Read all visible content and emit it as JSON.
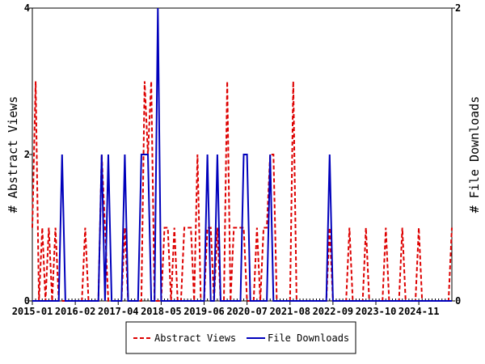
{
  "chart_data": {
    "type": "line",
    "x_start": "2015-01",
    "x_frequency": "monthly",
    "x_tick_labels": [
      "2015-01",
      "2016-02",
      "2017-04",
      "2018-05",
      "2019-06",
      "2020-07",
      "2021-08",
      "2022-09",
      "2023-10",
      "2024-11"
    ],
    "y_left": {
      "label": "# Abstract Views",
      "range": [
        0,
        4
      ],
      "ticks": [
        "0",
        "2",
        "4"
      ]
    },
    "y_right": {
      "label": "# File Downloads",
      "range": [
        0,
        2
      ],
      "ticks": [
        "0",
        "2"
      ]
    },
    "grid": false,
    "legend_position": "bottom",
    "series": [
      {
        "name": "Abstract Views",
        "axis": "left",
        "color": "#dd0000",
        "style": "dashed",
        "values": [
          1,
          3,
          0,
          1,
          0,
          1,
          0,
          1,
          0,
          0,
          0,
          0,
          0,
          0,
          0,
          0,
          1,
          0,
          0,
          0,
          0,
          2,
          1,
          0,
          0,
          0,
          0,
          0,
          1,
          0,
          0,
          0,
          0,
          0,
          3,
          2,
          3,
          0,
          0,
          0,
          1,
          1,
          0,
          1,
          0,
          0,
          1,
          1,
          1,
          0,
          2,
          0,
          0,
          1,
          1,
          0,
          1,
          0,
          0,
          3,
          0,
          1,
          1,
          1,
          1,
          0,
          0,
          0,
          1,
          0,
          1,
          1,
          2,
          2,
          0,
          0,
          0,
          0,
          0,
          3,
          0,
          0,
          0,
          0,
          0,
          0,
          0,
          0,
          0,
          0,
          1,
          0,
          0,
          0,
          0,
          0,
          1,
          0,
          0,
          0,
          0,
          1,
          0,
          0,
          0,
          0,
          0,
          1,
          0,
          0,
          0,
          0,
          1,
          0,
          0,
          0,
          0,
          1,
          0,
          0,
          0,
          0,
          0,
          0,
          0,
          0,
          0,
          1
        ]
      },
      {
        "name": "File Downloads",
        "axis": "right",
        "color": "#0000bb",
        "style": "solid",
        "values": [
          0,
          0,
          0,
          0,
          0,
          0,
          0,
          0,
          0,
          1,
          0,
          0,
          0,
          0,
          0,
          0,
          0,
          0,
          0,
          0,
          0,
          1,
          0,
          1,
          0,
          0,
          0,
          0,
          1,
          0,
          0,
          0,
          0,
          1,
          1,
          1,
          0,
          0,
          2,
          0,
          0,
          0,
          0,
          0,
          0,
          0,
          0,
          0,
          0,
          0,
          0,
          0,
          0,
          1,
          0,
          0,
          1,
          0,
          0,
          0,
          0,
          0,
          0,
          0,
          1,
          1,
          0,
          0,
          0,
          0,
          0,
          0,
          1,
          0,
          0,
          0,
          0,
          0,
          0,
          0,
          0,
          0,
          0,
          0,
          0,
          0,
          0,
          0,
          0,
          0,
          1,
          0,
          0,
          0,
          0,
          0,
          0,
          0,
          0,
          0,
          0,
          0,
          0,
          0,
          0,
          0,
          0,
          0,
          0,
          0,
          0,
          0,
          0,
          0,
          0,
          0,
          0,
          0,
          0,
          0,
          0,
          0,
          0,
          0,
          0,
          0,
          0,
          0
        ]
      }
    ]
  }
}
